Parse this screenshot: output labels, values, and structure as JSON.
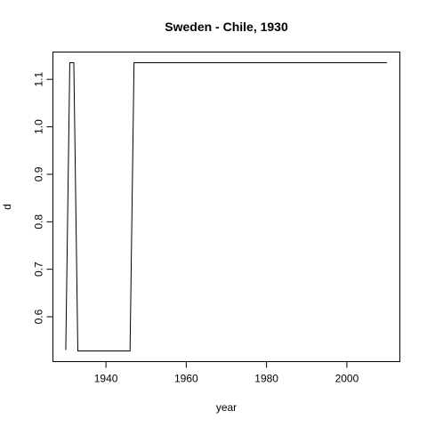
{
  "chart_data": {
    "type": "line",
    "title": "Sweden - Chile, 1930",
    "xlabel": "year",
    "ylabel": "d",
    "xlim": [
      1926.8,
      2013.2
    ],
    "ylim": [
      0.5055,
      1.1575
    ],
    "xticks": [
      1940,
      1960,
      1980,
      2000
    ],
    "yticks": [
      0.6,
      0.7,
      0.8,
      0.9,
      1.0,
      1.1
    ],
    "ytick_labels": [
      "0.6",
      "0.7",
      "0.8",
      "0.9",
      "1.0",
      "1.1"
    ],
    "grid": false,
    "x": [
      1930,
      1931,
      1932,
      1933,
      1946,
      1947,
      2010
    ],
    "y": [
      0.53,
      1.135,
      1.135,
      0.528,
      0.528,
      1.135,
      1.135
    ]
  }
}
